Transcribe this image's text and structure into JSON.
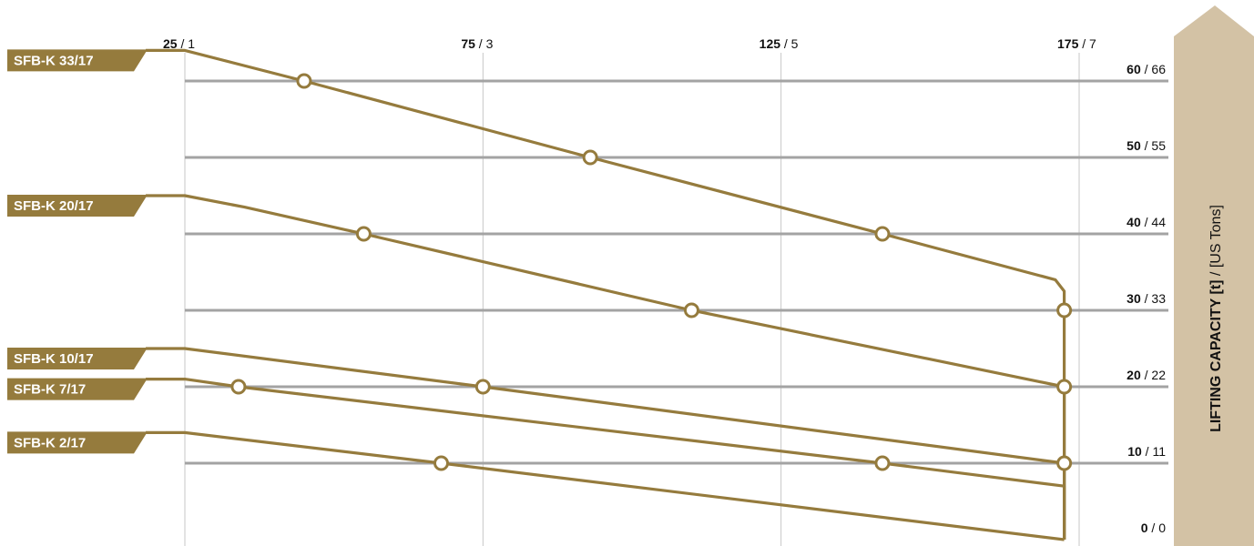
{
  "colors": {
    "curve": "#957b3d",
    "tag_fill": "#957b3d",
    "hgrid": "#a3a3a3",
    "vgrid": "#c7c7c7",
    "arrow": "#d3c2a5",
    "background": "#ffffff"
  },
  "top_axis": {
    "ticks": [
      {
        "bold": "25",
        "thin": "1"
      },
      {
        "bold": "75",
        "thin": "3"
      },
      {
        "bold": "125",
        "thin": "5"
      },
      {
        "bold": "175",
        "thin": "7"
      }
    ]
  },
  "right_axis": {
    "title_bold": "LIFTING CAPACITY [t]",
    "title_sep": " / ",
    "title_thin": "[US Tons]",
    "ticks": [
      {
        "bold": "60",
        "thin": "66"
      },
      {
        "bold": "50",
        "thin": "55"
      },
      {
        "bold": "40",
        "thin": "44"
      },
      {
        "bold": "30",
        "thin": "33"
      },
      {
        "bold": "20",
        "thin": "22"
      },
      {
        "bold": "10",
        "thin": "11"
      },
      {
        "bold": "0",
        "thin": "0"
      }
    ]
  },
  "chart_data": {
    "type": "line",
    "x_ticks": [
      25,
      75,
      125,
      175
    ],
    "x_secondary_ticks": [
      1,
      3,
      5,
      7
    ],
    "y_ticks": [
      60,
      50,
      40,
      30,
      20,
      10,
      0
    ],
    "y_secondary_ticks": [
      66,
      55,
      44,
      33,
      22,
      11,
      0
    ],
    "xlim": [
      25,
      175
    ],
    "ylim": [
      0,
      64
    ],
    "grid": true,
    "series": [
      {
        "name": "SFB-K 33/17",
        "x": [
          25,
          45,
          93,
          142,
          171,
          172.5,
          172.5,
          172.5
        ],
        "y": [
          64,
          60,
          50,
          40,
          34,
          32.5,
          30,
          0
        ]
      },
      {
        "name": "SFB-K 20/17",
        "x": [
          25,
          35,
          55,
          110,
          172.5,
          172.5
        ],
        "y": [
          45,
          43.5,
          40,
          30,
          20,
          0
        ]
      },
      {
        "name": "SFB-K 10/17",
        "x": [
          25,
          75,
          172.5,
          172.5
        ],
        "y": [
          25,
          20,
          10,
          0
        ]
      },
      {
        "name": "SFB-K 7/17",
        "x": [
          25,
          34,
          142,
          172.5,
          172.5
        ],
        "y": [
          21,
          20,
          10,
          7,
          0
        ]
      },
      {
        "name": "SFB-K 2/17",
        "x": [
          25,
          68,
          172.5
        ],
        "y": [
          14,
          10,
          0
        ]
      }
    ],
    "markers": [
      {
        "x": 45,
        "y": 60
      },
      {
        "x": 93,
        "y": 50
      },
      {
        "x": 142,
        "y": 40
      },
      {
        "x": 172.5,
        "y": 30
      },
      {
        "x": 55,
        "y": 40
      },
      {
        "x": 110,
        "y": 30
      },
      {
        "x": 172.5,
        "y": 20
      },
      {
        "x": 75,
        "y": 20
      },
      {
        "x": 172.5,
        "y": 10
      },
      {
        "x": 34,
        "y": 20
      },
      {
        "x": 142,
        "y": 10
      },
      {
        "x": 68,
        "y": 10
      }
    ]
  }
}
